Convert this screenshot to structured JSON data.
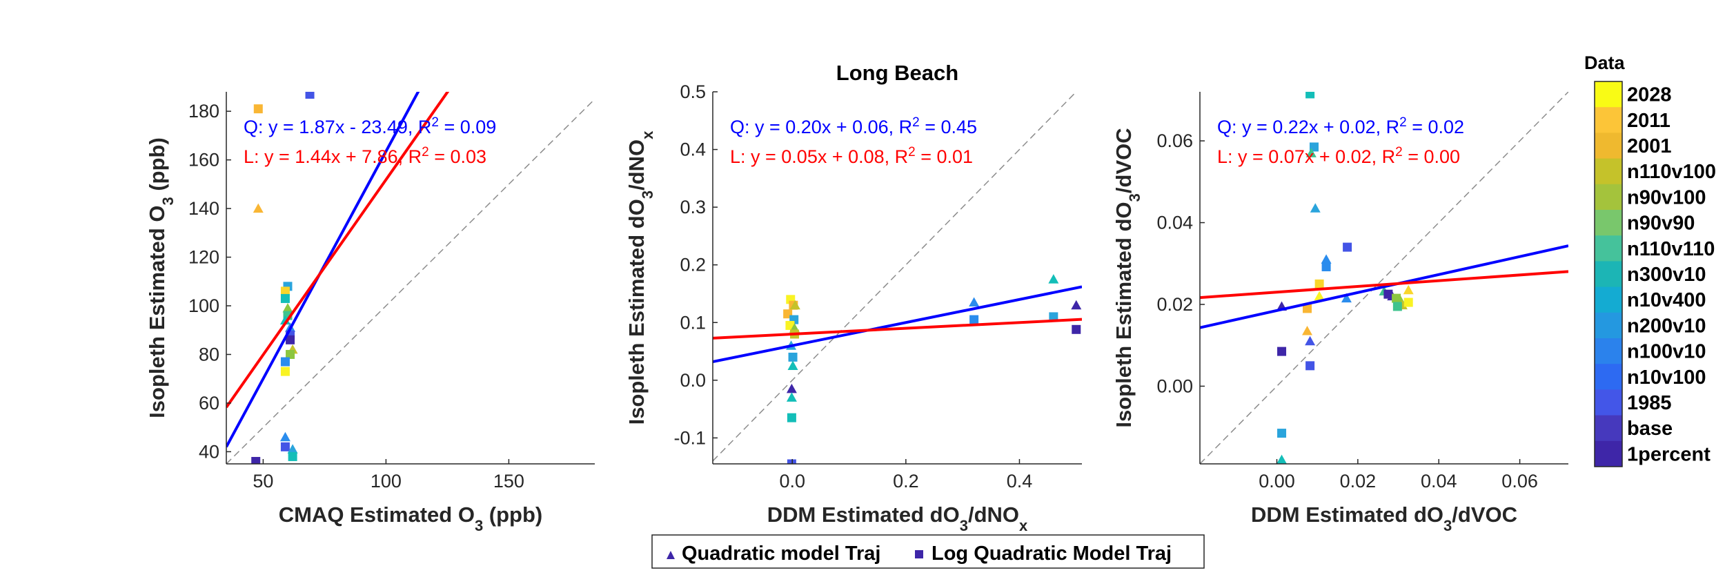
{
  "chart_data": [
    {
      "type": "scatter",
      "title": "",
      "xlabel": [
        "CMAQ Estimated O",
        "3",
        " (ppb)"
      ],
      "ylabel": [
        "Isopleth Estimated O",
        "3",
        " (ppb)"
      ],
      "xlim": [
        35,
        185
      ],
      "ylim": [
        35,
        188
      ],
      "xticks": [
        50,
        100,
        150
      ],
      "yticks": [
        40,
        60,
        80,
        100,
        120,
        140,
        160,
        180
      ],
      "tick_decimals": 0,
      "identity_line": true,
      "fits": [
        {
          "label": "Q: y = 1.87x - 23.49, R",
          "r2": "2 = 0.09",
          "color": "#0000ff",
          "slope": 1.87,
          "intercept": -23.49
        },
        {
          "label": "L: y = 1.44x + 7.86, R",
          "r2": "2 = 0.03",
          "color": "#ff0000",
          "slope": 1.44,
          "intercept": 7.86
        }
      ],
      "points": [
        {
          "x": 48,
          "y": 181,
          "m": "square",
          "c": "#f9b634"
        },
        {
          "x": 48,
          "y": 140,
          "m": "triangle",
          "c": "#f9b634"
        },
        {
          "x": 47,
          "y": 36,
          "m": "square",
          "c": "#3e26a8"
        },
        {
          "x": 69,
          "y": 187,
          "m": "square",
          "c": "#4354e6"
        },
        {
          "x": 60,
          "y": 108,
          "m": "square",
          "c": "#2aa4dc"
        },
        {
          "x": 59,
          "y": 106,
          "m": "square",
          "c": "#f9d62b"
        },
        {
          "x": 59,
          "y": 103,
          "m": "square",
          "c": "#13beb8"
        },
        {
          "x": 60,
          "y": 99,
          "m": "triangle",
          "c": "#8bc63f"
        },
        {
          "x": 60,
          "y": 96,
          "m": "square",
          "c": "#3ec38e"
        },
        {
          "x": 59,
          "y": 94,
          "m": "triangle",
          "c": "#13beb8"
        },
        {
          "x": 61,
          "y": 91,
          "m": "triangle",
          "c": "#2a8ced"
        },
        {
          "x": 61,
          "y": 88,
          "m": "square",
          "c": "#4354e6"
        },
        {
          "x": 61,
          "y": 86,
          "m": "square",
          "c": "#3e26a8"
        },
        {
          "x": 62,
          "y": 82,
          "m": "triangle",
          "c": "#c5c22a"
        },
        {
          "x": 61,
          "y": 80,
          "m": "square",
          "c": "#8bc63f"
        },
        {
          "x": 59,
          "y": 77,
          "m": "square",
          "c": "#2a8ced"
        },
        {
          "x": 59,
          "y": 73,
          "m": "square",
          "c": "#f9f323"
        },
        {
          "x": 59,
          "y": 46,
          "m": "triangle",
          "c": "#2a8ced"
        },
        {
          "x": 59,
          "y": 42,
          "m": "square",
          "c": "#4354e6"
        },
        {
          "x": 62,
          "y": 41,
          "m": "triangle",
          "c": "#2aa4dc"
        },
        {
          "x": 62,
          "y": 38,
          "m": "square",
          "c": "#13beb8"
        }
      ]
    },
    {
      "type": "scatter",
      "title": "Long Beach",
      "xlabel": [
        "DDM Estimated dO",
        "3",
        "/dNO",
        "x",
        ""
      ],
      "ylabel": [
        "Isopleth Estimated dO",
        "3",
        "/dNO",
        "x",
        ""
      ],
      "xlim": [
        -0.14,
        0.51
      ],
      "ylim": [
        -0.145,
        0.5
      ],
      "xticks": [
        0,
        0.2,
        0.4
      ],
      "yticks": [
        -0.1,
        0,
        0.1,
        0.2,
        0.3,
        0.4,
        0.5
      ],
      "tick_decimals": 1,
      "identity_line": true,
      "fits": [
        {
          "label": "Q: y = 0.20x + 0.06, R",
          "r2": "2 = 0.45",
          "color": "#0000ff",
          "slope": 0.2,
          "intercept": 0.06
        },
        {
          "label": "L: y = 0.05x + 0.08, R",
          "r2": "2 = 0.01",
          "color": "#ff0000",
          "slope": 0.05,
          "intercept": 0.08
        }
      ],
      "points": [
        {
          "x": -0.003,
          "y": 0.14,
          "m": "square",
          "c": "#f9f323"
        },
        {
          "x": 0.002,
          "y": 0.13,
          "m": "square",
          "c": "#f9b634"
        },
        {
          "x": 0.005,
          "y": 0.13,
          "m": "triangle",
          "c": "#c5c22a"
        },
        {
          "x": -0.008,
          "y": 0.115,
          "m": "square",
          "c": "#f9b634"
        },
        {
          "x": 0.003,
          "y": 0.105,
          "m": "square",
          "c": "#2aa4dc"
        },
        {
          "x": -0.004,
          "y": 0.095,
          "m": "square",
          "c": "#f9f323"
        },
        {
          "x": 0.004,
          "y": 0.09,
          "m": "triangle",
          "c": "#8bc63f"
        },
        {
          "x": 0.004,
          "y": 0.08,
          "m": "square",
          "c": "#c5c22a"
        },
        {
          "x": -0.002,
          "y": 0.06,
          "m": "triangle",
          "c": "#2aa4dc"
        },
        {
          "x": 0.001,
          "y": 0.04,
          "m": "square",
          "c": "#2aa4dc"
        },
        {
          "x": 0.001,
          "y": 0.025,
          "m": "triangle",
          "c": "#13beb8"
        },
        {
          "x": -0.001,
          "y": -0.015,
          "m": "triangle",
          "c": "#3e26a8"
        },
        {
          "x": -0.001,
          "y": -0.03,
          "m": "triangle",
          "c": "#13beb8"
        },
        {
          "x": -0.001,
          "y": -0.065,
          "m": "square",
          "c": "#13beb8"
        },
        {
          "x": -0.001,
          "y": -0.145,
          "m": "square",
          "c": "#4354e6"
        },
        {
          "x": 0.32,
          "y": 0.135,
          "m": "triangle",
          "c": "#2a8ced"
        },
        {
          "x": 0.32,
          "y": 0.105,
          "m": "square",
          "c": "#2a8ced"
        },
        {
          "x": 0.46,
          "y": 0.175,
          "m": "triangle",
          "c": "#13beb8"
        },
        {
          "x": 0.46,
          "y": 0.11,
          "m": "square",
          "c": "#2aa4dc"
        },
        {
          "x": 0.5,
          "y": 0.13,
          "m": "triangle",
          "c": "#3e26a8"
        },
        {
          "x": 0.5,
          "y": 0.088,
          "m": "square",
          "c": "#3e26a8"
        }
      ]
    },
    {
      "type": "scatter",
      "title": "",
      "xlabel": [
        "DDM Estimated dO",
        "3",
        "/dVOC"
      ],
      "ylabel": [
        "Isopleth Estimated dO",
        "3",
        "/dVOC"
      ],
      "xlim": [
        -0.019,
        0.072
      ],
      "ylim": [
        -0.019,
        0.072
      ],
      "xticks": [
        0,
        0.02,
        0.04,
        0.06
      ],
      "yticks": [
        0,
        0.02,
        0.04,
        0.06
      ],
      "tick_decimals": 2,
      "identity_line": true,
      "fits": [
        {
          "label": "Q: y = 0.22x + 0.02, R",
          "r2": "2 = 0.02",
          "color": "#0000ff",
          "slope": 0.22,
          "intercept": 0.0185
        },
        {
          "label": "L: y = 0.07x + 0.02, R",
          "r2": "2 = 0.00",
          "color": "#ff0000",
          "slope": 0.07,
          "intercept": 0.023
        }
      ],
      "points": [
        {
          "x": 0.0082,
          "y": 0.0715,
          "m": "square",
          "c": "#13beb8"
        },
        {
          "x": 0.0092,
          "y": 0.0585,
          "m": "square",
          "c": "#2aa4dc"
        },
        {
          "x": 0.0085,
          "y": 0.057,
          "m": "triangle",
          "c": "#3ec38e"
        },
        {
          "x": 0.0095,
          "y": 0.0435,
          "m": "triangle",
          "c": "#2aa4dc"
        },
        {
          "x": 0.0122,
          "y": 0.031,
          "m": "triangle",
          "c": "#2a8ced"
        },
        {
          "x": 0.0122,
          "y": 0.0292,
          "m": "square",
          "c": "#2a8ced"
        },
        {
          "x": 0.0174,
          "y": 0.034,
          "m": "square",
          "c": "#4354e6"
        },
        {
          "x": 0.0105,
          "y": 0.025,
          "m": "square",
          "c": "#f9d62b"
        },
        {
          "x": 0.0105,
          "y": 0.022,
          "m": "triangle",
          "c": "#f9f323"
        },
        {
          "x": 0.0172,
          "y": 0.0215,
          "m": "triangle",
          "c": "#2a8ced"
        },
        {
          "x": 0.0012,
          "y": 0.0195,
          "m": "triangle",
          "c": "#3e26a8"
        },
        {
          "x": 0.0075,
          "y": 0.019,
          "m": "square",
          "c": "#f9b634"
        },
        {
          "x": 0.0075,
          "y": 0.0135,
          "m": "triangle",
          "c": "#f9b634"
        },
        {
          "x": 0.0082,
          "y": 0.011,
          "m": "triangle",
          "c": "#4354e6"
        },
        {
          "x": 0.0012,
          "y": 0.0085,
          "m": "square",
          "c": "#3e26a8"
        },
        {
          "x": 0.0082,
          "y": 0.005,
          "m": "square",
          "c": "#4354e6"
        },
        {
          "x": 0.0012,
          "y": -0.0115,
          "m": "square",
          "c": "#2aa4dc"
        },
        {
          "x": 0.0012,
          "y": -0.018,
          "m": "triangle",
          "c": "#13beb8"
        },
        {
          "x": 0.0265,
          "y": 0.0232,
          "m": "triangle",
          "c": "#3ec38e"
        },
        {
          "x": 0.0275,
          "y": 0.0225,
          "m": "square",
          "c": "#3e26a8"
        },
        {
          "x": 0.0285,
          "y": 0.022,
          "m": "triangle",
          "c": "#3e26a8"
        },
        {
          "x": 0.0295,
          "y": 0.0215,
          "m": "square",
          "c": "#8bc63f"
        },
        {
          "x": 0.0305,
          "y": 0.021,
          "m": "triangle",
          "c": "#8bc63f"
        },
        {
          "x": 0.031,
          "y": 0.0198,
          "m": "triangle",
          "c": "#c5c22a"
        },
        {
          "x": 0.0325,
          "y": 0.0205,
          "m": "square",
          "c": "#f9f323"
        },
        {
          "x": 0.0325,
          "y": 0.0235,
          "m": "triangle",
          "c": "#f9d62b"
        },
        {
          "x": 0.0298,
          "y": 0.0195,
          "m": "square",
          "c": "#3ec38e"
        }
      ]
    }
  ],
  "legend": {
    "entries": [
      {
        "marker": "triangle",
        "label": "Quadratic model Traj"
      },
      {
        "marker": "square",
        "label": "Log Quadratic Model Traj"
      }
    ],
    "marker_color": "#3e26a8"
  },
  "colorbar": {
    "title": "Data",
    "labels": [
      "2028",
      "2011",
      "2001",
      "n110v100",
      "n90v100",
      "n90v90",
      "n110v110",
      "n300v10",
      "n10v400",
      "n200v10",
      "n100v10",
      "n10v100",
      "1985",
      "base",
      "1percent"
    ],
    "colors": [
      "#f9fb15",
      "#fcc538",
      "#efb92f",
      "#c5c22a",
      "#a4c33c",
      "#79c76c",
      "#45c29b",
      "#1cb5b5",
      "#14abd2",
      "#2498e0",
      "#2b82ec",
      "#2d6af2",
      "#4356e8",
      "#4639bd",
      "#3e26a8"
    ]
  }
}
